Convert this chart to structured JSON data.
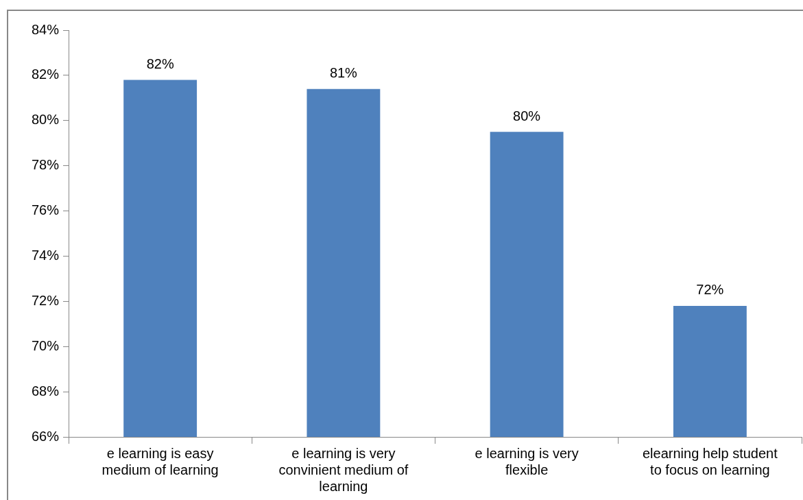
{
  "chart_data": {
    "type": "bar",
    "categories": [
      "e learning is easy medium of learning",
      "e learning is very convinient medium of learning",
      "e learning is very flexible",
      "elearning help student to focus on learning"
    ],
    "values": [
      81.8,
      81.4,
      79.5,
      71.8
    ],
    "value_labels": [
      "82%",
      "81%",
      "80%",
      "72%"
    ],
    "color": "#4f81bd",
    "ylim": [
      66,
      84
    ],
    "yticks": [
      {
        "value": 66,
        "label": "66%"
      },
      {
        "value": 68,
        "label": "68%"
      },
      {
        "value": 70,
        "label": "70%"
      },
      {
        "value": 72,
        "label": "72%"
      },
      {
        "value": 74,
        "label": "74%"
      },
      {
        "value": 76,
        "label": "76%"
      },
      {
        "value": 78,
        "label": "78%"
      },
      {
        "value": 80,
        "label": "80%"
      },
      {
        "value": 82,
        "label": "82%"
      },
      {
        "value": 84,
        "label": "84%"
      }
    ],
    "grid": false,
    "legend": false
  }
}
